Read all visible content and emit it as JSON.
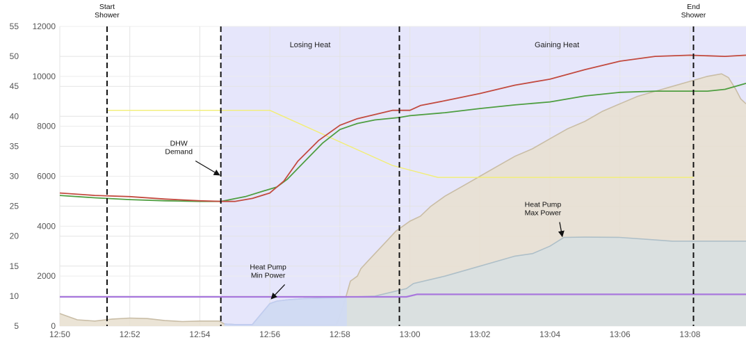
{
  "chart_data": {
    "type": "line",
    "title": "",
    "x_axis": {
      "ticks": [
        "12:50",
        "12:52",
        "12:54",
        "12:56",
        "12:58",
        "13:00",
        "13:02",
        "13:04",
        "13:06",
        "13:08"
      ],
      "tick_minutes": [
        0,
        2,
        4,
        6,
        8,
        10,
        12,
        14,
        16,
        18
      ],
      "range_minutes": [
        0,
        19.6
      ]
    },
    "y_axis_temperature": {
      "ticks": [
        5,
        10,
        15,
        20,
        25,
        30,
        35,
        40,
        45,
        50,
        55
      ],
      "range": [
        5,
        55
      ]
    },
    "y_axis_power": {
      "ticks": [
        0,
        2000,
        4000,
        6000,
        8000,
        10000,
        12000
      ],
      "range": [
        0,
        12000
      ]
    },
    "grid": true,
    "shaded_region": {
      "start_minute": 4.6,
      "end_minute": 19.6,
      "color": "#e6e6fb"
    },
    "markers": [
      {
        "minute": 1.35,
        "label": [
          "Start",
          "Shower"
        ]
      },
      {
        "minute": 4.6,
        "label": []
      },
      {
        "minute": 9.7,
        "label": []
      },
      {
        "minute": 18.1,
        "label": [
          "End",
          "Shower"
        ]
      }
    ],
    "region_labels": [
      {
        "text": "Losing Heat",
        "minute": 7.15
      },
      {
        "text": "Gaining Heat",
        "minute": 14.2
      }
    ],
    "annotations": [
      {
        "lines": [
          "DHW",
          "Demand"
        ],
        "minute": 3.4,
        "target_minute": 4.55,
        "target_value": 6000,
        "axis": "power"
      },
      {
        "lines": [
          "Heat Pump",
          "Min Power"
        ],
        "minute": 5.95,
        "target_minute": 6.05,
        "target_value": 1050,
        "axis": "power"
      },
      {
        "lines": [
          "Heat Pump",
          "Max Power"
        ],
        "minute": 13.8,
        "target_minute": 14.35,
        "target_value": 3550,
        "axis": "power"
      }
    ],
    "series": [
      {
        "axis": "power",
        "style": "area",
        "color": "#e8dfcf",
        "edge": "#c9bda6",
        "x": [
          0,
          0.2,
          0.5,
          1.0,
          1.5,
          2.0,
          2.5,
          3.0,
          3.5,
          4.0,
          4.55,
          4.7,
          5.0,
          5.5,
          7.9,
          8.05,
          8.2,
          8.3,
          8.5,
          8.6,
          8.8,
          9.0,
          9.2,
          9.4,
          9.6,
          9.8,
          10.0,
          10.3,
          10.6,
          11.0,
          11.5,
          12.0,
          12.5,
          13.0,
          13.5,
          14.0,
          14.5,
          15.0,
          15.5,
          16.0,
          16.5,
          17.0,
          17.5,
          18.0,
          18.5,
          18.9,
          19.1,
          19.3,
          19.45,
          19.6
        ],
        "y": [
          500,
          400,
          250,
          200,
          280,
          320,
          300,
          220,
          180,
          200,
          200,
          80,
          50,
          50,
          50,
          600,
          1300,
          1800,
          2000,
          2300,
          2600,
          2900,
          3200,
          3500,
          3800,
          4000,
          4200,
          4400,
          4800,
          5200,
          5600,
          6000,
          6400,
          6800,
          7100,
          7500,
          7900,
          8200,
          8600,
          8900,
          9200,
          9400,
          9600,
          9800,
          10000,
          10100,
          9950,
          9500,
          9100,
          8900
        ]
      },
      {
        "axis": "power",
        "style": "area",
        "color": "#d7dfe2",
        "edge": "#aebfc8",
        "x": [
          4.7,
          5.0,
          5.5,
          6.0,
          6.2,
          6.5,
          7.0,
          8.0,
          9.0,
          9.9,
          10.1,
          11.0,
          12.0,
          13.0,
          13.5,
          14.0,
          14.4,
          15.0,
          16.0,
          17.0,
          17.5,
          18.0,
          19.0,
          19.6
        ],
        "y": [
          80,
          60,
          60,
          900,
          1000,
          1050,
          1100,
          1150,
          1200,
          1500,
          1700,
          2000,
          2400,
          2800,
          2900,
          3200,
          3550,
          3560,
          3550,
          3450,
          3400,
          3400,
          3400,
          3400
        ]
      },
      {
        "axis": "power",
        "style": "area",
        "color": "#cfd9f5",
        "edge": "#c0ccef",
        "x": [
          4.7,
          5.0,
          5.5,
          6.0,
          6.2,
          6.5,
          7.0,
          7.5,
          8.0,
          8.2
        ],
        "y": [
          80,
          60,
          60,
          900,
          1000,
          1050,
          1100,
          1120,
          1140,
          1150
        ]
      },
      {
        "axis": "power",
        "style": "line",
        "color": "#a877dd",
        "width": 2.2,
        "x": [
          0,
          9.9,
          10.2,
          19.6
        ],
        "y": [
          1170,
          1170,
          1270,
          1270
        ]
      },
      {
        "axis": "temperature",
        "style": "line",
        "color": "#f2ee74",
        "width": 1.4,
        "x": [
          1.35,
          6.0,
          9.5,
          10.8,
          18.1
        ],
        "y": [
          41,
          41,
          31.8,
          29.8,
          29.8
        ]
      },
      {
        "axis": "temperature",
        "style": "line",
        "color": "#4e9e40",
        "width": 1.8,
        "x": [
          0,
          1,
          2,
          3,
          4,
          4.6,
          5.3,
          5.8,
          6.2,
          6.5,
          7.0,
          7.5,
          8.0,
          8.5,
          9.0,
          9.7,
          10.0,
          11.0,
          12.0,
          13.0,
          14.0,
          15.0,
          16.0,
          17.0,
          18.0,
          18.5,
          19.0,
          19.6
        ],
        "y": [
          26.8,
          26.4,
          26.1,
          25.9,
          25.8,
          25.8,
          26.6,
          27.5,
          28.2,
          29.5,
          32.5,
          35.5,
          37.8,
          38.8,
          39.4,
          39.8,
          40.1,
          40.6,
          41.3,
          41.9,
          42.4,
          43.4,
          44.0,
          44.2,
          44.2,
          44.2,
          44.5,
          45.5
        ]
      },
      {
        "axis": "temperature",
        "style": "line",
        "color": "#c24a3f",
        "width": 1.8,
        "x": [
          0,
          1,
          2,
          3,
          4,
          4.6,
          5.0,
          5.5,
          6.0,
          6.4,
          6.8,
          7.4,
          8.0,
          8.5,
          9.0,
          9.5,
          10.0,
          10.3,
          11.0,
          12.0,
          13.0,
          14.0,
          15.0,
          16.0,
          17.0,
          18.0,
          19.0,
          19.6
        ],
        "y": [
          27.2,
          26.8,
          26.6,
          26.2,
          25.9,
          25.8,
          25.8,
          26.3,
          27.2,
          29.2,
          32.5,
          36.0,
          38.5,
          39.6,
          40.3,
          41.0,
          41.0,
          41.8,
          42.6,
          43.8,
          45.2,
          46.2,
          47.8,
          49.2,
          50.0,
          50.2,
          50.0,
          50.2
        ]
      }
    ]
  }
}
